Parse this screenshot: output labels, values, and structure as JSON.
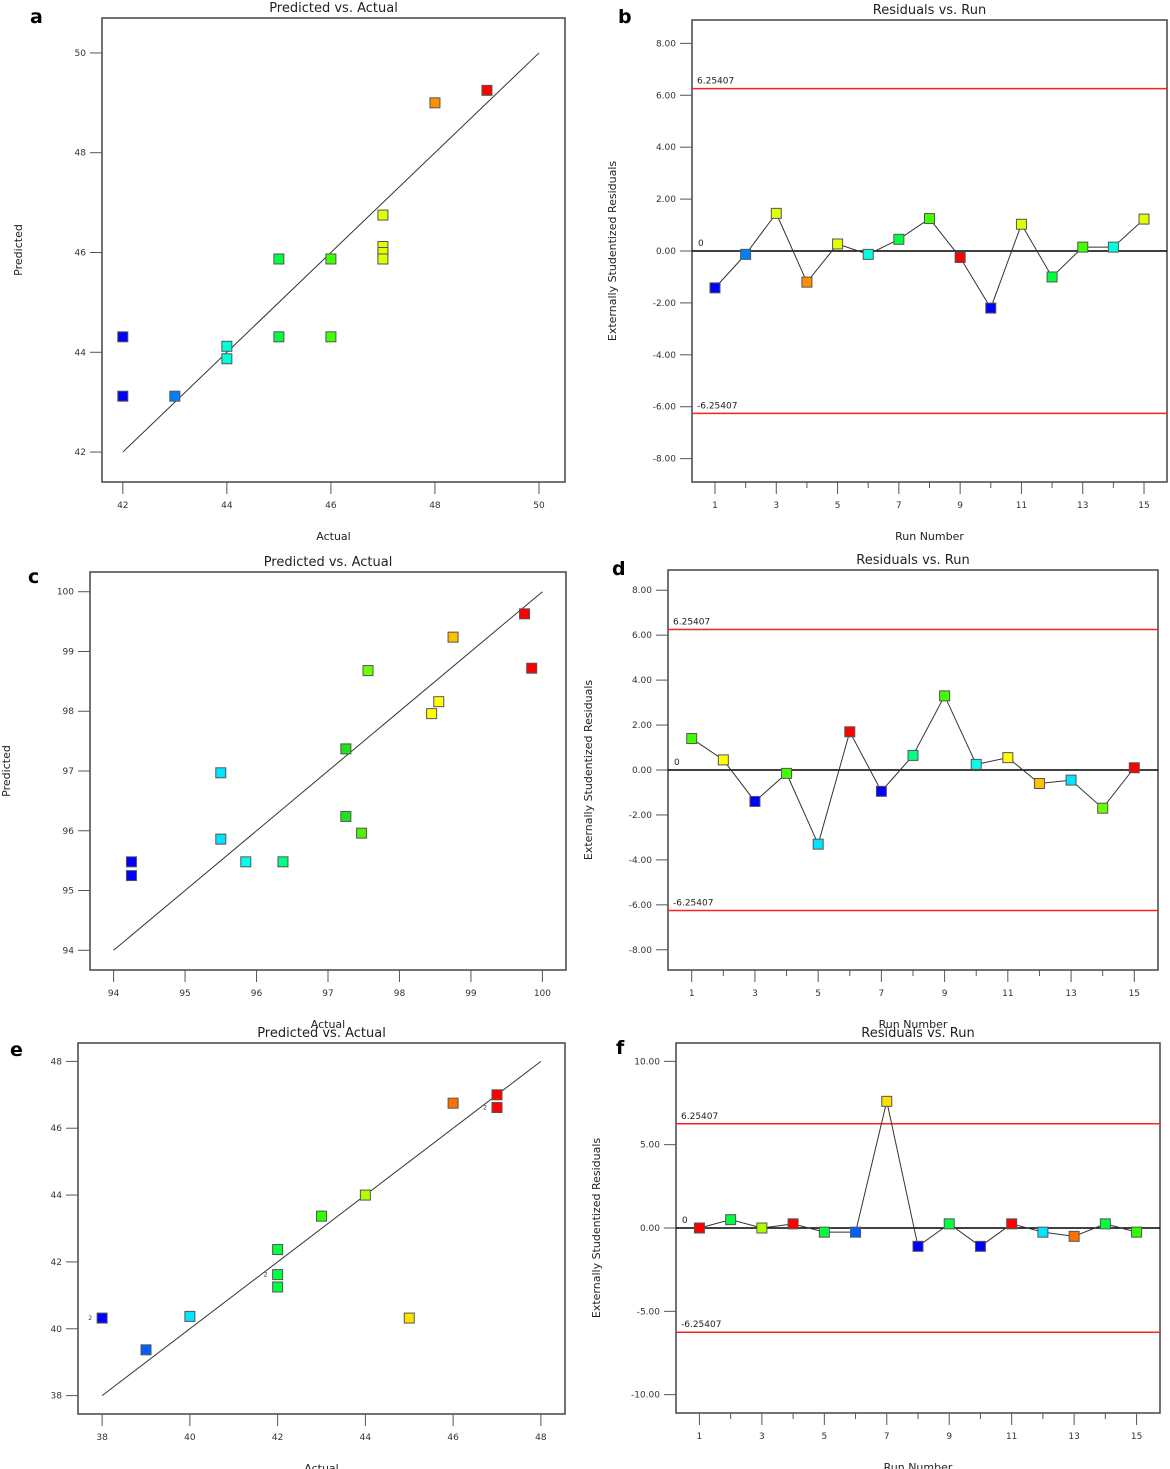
{
  "panels": [
    {
      "id": "a",
      "label": "a"
    },
    {
      "id": "b",
      "label": "b"
    },
    {
      "id": "c",
      "label": "c"
    },
    {
      "id": "d",
      "label": "d"
    },
    {
      "id": "e",
      "label": "e"
    },
    {
      "id": "f",
      "label": "f"
    }
  ],
  "chart_data": [
    {
      "panel": "a",
      "type": "scatter",
      "title": "Predicted vs. Actual",
      "xlabel": "Actual",
      "ylabel": "Predicted",
      "xlim": [
        41.6,
        50.5
      ],
      "ylim": [
        41.4,
        50.7
      ],
      "xticks": [
        42,
        44,
        46,
        48,
        50
      ],
      "yticks": [
        42,
        44,
        46,
        48,
        50
      ],
      "reference_line": {
        "from": [
          42,
          42
        ],
        "to": [
          50,
          50
        ]
      },
      "points": [
        {
          "x": 42,
          "y": 44.31,
          "color": "#0000ff"
        },
        {
          "x": 42,
          "y": 43.12,
          "color": "#0000ff"
        },
        {
          "x": 43,
          "y": 43.12,
          "color": "#0080ff"
        },
        {
          "x": 44,
          "y": 44.12,
          "color": "#00ffdd"
        },
        {
          "x": 44,
          "y": 43.87,
          "color": "#00ffdd"
        },
        {
          "x": 45,
          "y": 44.31,
          "color": "#00ff40"
        },
        {
          "x": 46,
          "y": 44.31,
          "color": "#40ff00"
        },
        {
          "x": 45,
          "y": 45.87,
          "color": "#00ff40"
        },
        {
          "x": 46,
          "y": 45.87,
          "color": "#40ff00"
        },
        {
          "x": 47,
          "y": 46.75,
          "color": "#e0ff00"
        },
        {
          "x": 47,
          "y": 46.12,
          "color": "#e0ff00"
        },
        {
          "x": 47,
          "y": 46.0,
          "color": "#e0ff00"
        },
        {
          "x": 47,
          "y": 45.87,
          "color": "#e0ff00"
        },
        {
          "x": 48,
          "y": 49.0,
          "color": "#ff9000"
        },
        {
          "x": 49,
          "y": 49.25,
          "color": "#ff0000"
        }
      ]
    },
    {
      "panel": "b",
      "type": "line",
      "title": "Residuals vs. Run",
      "xlabel": "Run Number",
      "ylabel": "Externally Studentized Residuals",
      "xlim": [
        0.25,
        15.75
      ],
      "ylim": [
        -8.9,
        8.9
      ],
      "xticks": [
        1,
        3,
        5,
        7,
        9,
        11,
        13,
        15
      ],
      "minor_xticks": [
        2,
        4,
        6,
        8,
        10,
        12,
        14
      ],
      "yticks": [
        -8,
        -6,
        -4,
        -2,
        0,
        2,
        4,
        6,
        8
      ],
      "ytick_labels": [
        "-8.00",
        "-6.00",
        "-4.00",
        "-2.00",
        "0.00",
        "2.00",
        "4.00",
        "6.00",
        "8.00"
      ],
      "limits": {
        "upper": 6.25407,
        "lower": -6.25407,
        "upper_label": "6.25407",
        "lower_label": "-6.25407",
        "zero_label": "0"
      },
      "x": [
        1,
        2,
        3,
        4,
        5,
        6,
        7,
        8,
        9,
        10,
        11,
        12,
        13,
        14,
        15
      ],
      "values": [
        -1.42,
        -0.13,
        1.45,
        -1.2,
        0.27,
        -0.13,
        0.45,
        1.25,
        -0.25,
        -2.2,
        1.03,
        -1.0,
        0.15,
        0.15,
        1.23
      ],
      "colors": [
        "#0000ff",
        "#0080ff",
        "#e0ff00",
        "#ff9000",
        "#e0ff00",
        "#00ffdd",
        "#00ff40",
        "#40ff00",
        "#ff0000",
        "#0000ff",
        "#e0ff00",
        "#00ff40",
        "#40ff00",
        "#00ffdd",
        "#e0ff00"
      ]
    },
    {
      "panel": "c",
      "type": "scatter",
      "title": "Predicted vs. Actual",
      "xlabel": "Actual",
      "ylabel": "Predicted",
      "xlim": [
        93.67,
        100.33
      ],
      "ylim": [
        93.67,
        100.33
      ],
      "xticks": [
        94,
        95,
        96,
        97,
        98,
        99,
        100
      ],
      "yticks": [
        94,
        95,
        96,
        97,
        98,
        99,
        100
      ],
      "reference_line": {
        "from": [
          94,
          94
        ],
        "to": [
          100,
          100
        ]
      },
      "points": [
        {
          "x": 94.25,
          "y": 95.48,
          "color": "#0000ff"
        },
        {
          "x": 94.25,
          "y": 95.25,
          "color": "#0000ff"
        },
        {
          "x": 95.5,
          "y": 96.97,
          "color": "#00e5ff"
        },
        {
          "x": 95.5,
          "y": 95.86,
          "color": "#00e5ff"
        },
        {
          "x": 95.85,
          "y": 95.48,
          "color": "#00ffee"
        },
        {
          "x": 96.37,
          "y": 95.48,
          "color": "#00ff80"
        },
        {
          "x": 97.25,
          "y": 97.37,
          "color": "#20e020"
        },
        {
          "x": 97.25,
          "y": 96.24,
          "color": "#20e020"
        },
        {
          "x": 97.47,
          "y": 95.96,
          "color": "#50f000"
        },
        {
          "x": 97.56,
          "y": 98.68,
          "color": "#70ff00"
        },
        {
          "x": 98.45,
          "y": 97.96,
          "color": "#ffff00"
        },
        {
          "x": 98.55,
          "y": 98.16,
          "color": "#ffff00"
        },
        {
          "x": 98.75,
          "y": 99.24,
          "color": "#ffc000"
        },
        {
          "x": 99.75,
          "y": 99.63,
          "color": "#ff0000"
        },
        {
          "x": 99.85,
          "y": 98.72,
          "color": "#ff0000"
        }
      ]
    },
    {
      "panel": "d",
      "type": "line",
      "title": "Residuals vs. Run",
      "xlabel": "Run Number",
      "ylabel": "Externally Studentized Residuals",
      "xlim": [
        0.25,
        15.75
      ],
      "ylim": [
        -8.9,
        8.9
      ],
      "xticks": [
        1,
        3,
        5,
        7,
        9,
        11,
        13,
        15
      ],
      "minor_xticks": [
        2,
        4,
        6,
        8,
        10,
        12,
        14
      ],
      "yticks": [
        -8,
        -6,
        -4,
        -2,
        0,
        2,
        4,
        6,
        8
      ],
      "ytick_labels": [
        "-8.00",
        "-6.00",
        "-4.00",
        "-2.00",
        "0.00",
        "2.00",
        "4.00",
        "6.00",
        "8.00"
      ],
      "limits": {
        "upper": 6.25407,
        "lower": -6.25407,
        "upper_label": "6.25407",
        "lower_label": "-6.25407",
        "zero_label": "0"
      },
      "x": [
        1,
        2,
        3,
        4,
        5,
        6,
        7,
        8,
        9,
        10,
        11,
        12,
        13,
        14,
        15
      ],
      "values": [
        1.4,
        0.45,
        -1.4,
        -0.15,
        -3.3,
        1.7,
        -0.95,
        0.65,
        3.3,
        0.25,
        0.55,
        -0.6,
        -0.45,
        -1.7,
        0.1
      ],
      "colors": [
        "#40ff00",
        "#ffff00",
        "#0000ff",
        "#40ff00",
        "#00e5ff",
        "#ff0000",
        "#0000ff",
        "#00ff80",
        "#40ff00",
        "#00ffee",
        "#ffff00",
        "#ffc000",
        "#00e5ff",
        "#70ff00",
        "#ff0000"
      ]
    },
    {
      "panel": "e",
      "type": "scatter",
      "title": "Predicted vs. Actual",
      "xlabel": "Actual",
      "ylabel": "Predicted",
      "xlim": [
        37.45,
        48.55
      ],
      "ylim": [
        37.45,
        48.55
      ],
      "xticks": [
        38,
        40,
        42,
        44,
        46,
        48
      ],
      "yticks": [
        38,
        40,
        42,
        44,
        46,
        48
      ],
      "reference_line": {
        "from": [
          38,
          38
        ],
        "to": [
          48,
          48
        ]
      },
      "points": [
        {
          "x": 38,
          "y": 40.32,
          "color": "#0000ff",
          "count_label": "2"
        },
        {
          "x": 39,
          "y": 39.37,
          "color": "#0060ff"
        },
        {
          "x": 40,
          "y": 40.37,
          "color": "#00e5ff"
        },
        {
          "x": 42,
          "y": 42.37,
          "color": "#00ff40"
        },
        {
          "x": 42,
          "y": 41.62,
          "color": "#00ff40",
          "count_label": "2"
        },
        {
          "x": 42,
          "y": 41.25,
          "color": "#00ff40"
        },
        {
          "x": 43,
          "y": 43.37,
          "color": "#30ff00"
        },
        {
          "x": 44,
          "y": 44.0,
          "color": "#b0ff00"
        },
        {
          "x": 45,
          "y": 40.32,
          "color": "#ffe000"
        },
        {
          "x": 46,
          "y": 46.75,
          "color": "#ff7000"
        },
        {
          "x": 47,
          "y": 47.0,
          "color": "#ff0000"
        },
        {
          "x": 47,
          "y": 46.62,
          "color": "#ff0000",
          "count_label": "2"
        }
      ]
    },
    {
      "panel": "f",
      "type": "line",
      "title": "Residuals vs. Run",
      "xlabel": "Run Number",
      "ylabel": "Externally Studentized Residuals",
      "xlim": [
        0.25,
        15.75
      ],
      "ylim": [
        -11.1,
        11.1
      ],
      "xticks": [
        1,
        3,
        5,
        7,
        9,
        11,
        13,
        15
      ],
      "minor_xticks": [
        2,
        4,
        6,
        8,
        10,
        12,
        14
      ],
      "yticks": [
        -10,
        -5,
        0,
        5,
        10
      ],
      "ytick_labels": [
        "-10.00",
        "-5.00",
        "0.00",
        "5.00",
        "10.00"
      ],
      "limits": {
        "upper": 6.25407,
        "lower": -6.25407,
        "upper_label": "6.25407",
        "lower_label": "-6.25407",
        "zero_label": "0"
      },
      "x": [
        1,
        2,
        3,
        4,
        5,
        6,
        7,
        8,
        9,
        10,
        11,
        12,
        13,
        14,
        15
      ],
      "values": [
        0.0,
        0.5,
        0.0,
        0.25,
        -0.25,
        -0.25,
        7.6,
        -1.1,
        0.25,
        -1.1,
        0.25,
        -0.25,
        -0.5,
        0.25,
        -0.25
      ],
      "colors": [
        "#ff0000",
        "#00ff40",
        "#b0ff00",
        "#ff0000",
        "#00ff40",
        "#0060ff",
        "#ffe000",
        "#0000ff",
        "#00ff40",
        "#0000ff",
        "#ff0000",
        "#00e5ff",
        "#ff7000",
        "#00ff40",
        "#30ff00"
      ]
    }
  ]
}
